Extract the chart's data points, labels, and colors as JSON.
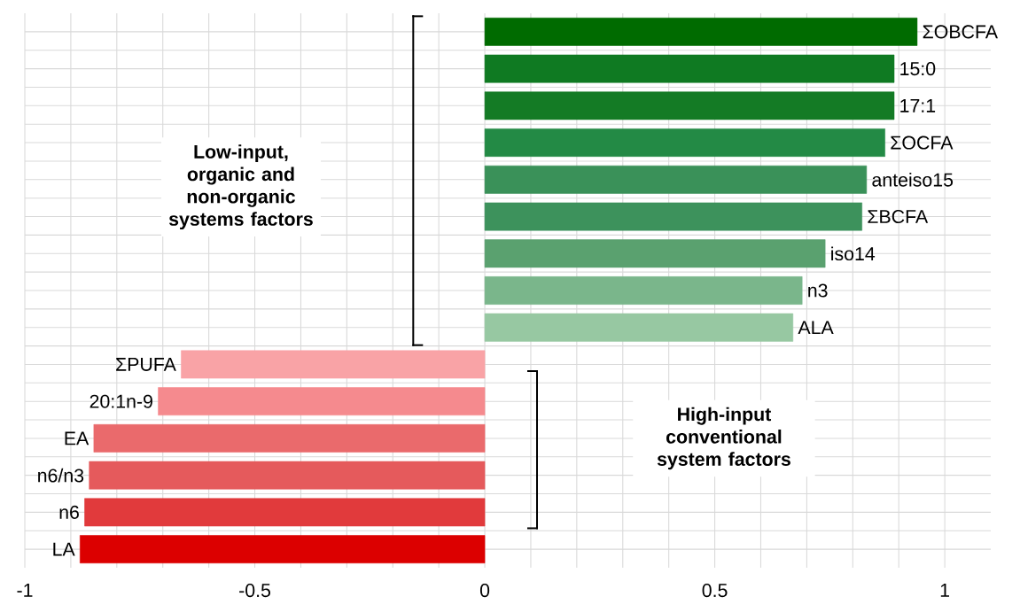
{
  "chart_data": {
    "type": "bar",
    "orientation": "horizontal",
    "categories": [
      "ΣOBCFA",
      "15:0",
      "17:1",
      "ΣOCFA",
      "anteiso15",
      "ΣBCFA",
      "iso14",
      "n3",
      "ALA",
      "ΣPUFA",
      "20:1n-9",
      "EA",
      "n6/n3",
      "n6",
      "LA"
    ],
    "values": [
      0.94,
      0.89,
      0.89,
      0.87,
      0.83,
      0.82,
      0.74,
      0.69,
      0.67,
      -0.66,
      -0.71,
      -0.85,
      -0.86,
      -0.87,
      -0.88
    ],
    "colors": [
      "#006b00",
      "#0f7a22",
      "#147b25",
      "#238a45",
      "#3a9159",
      "#3d925c",
      "#5aa16f",
      "#7ab68b",
      "#97c8a2",
      "#f9a3a6",
      "#f58a8e",
      "#ea6a6c",
      "#e55a5c",
      "#e13a3c",
      "#dc0000"
    ],
    "xlim": [
      -1,
      1.1
    ],
    "xticks": [
      -1,
      -0.5,
      0,
      0.5,
      1
    ],
    "grid": true,
    "annotations": [
      "Low-input, organic and non-organic systems factors",
      "High-input conventional system factors"
    ]
  }
}
